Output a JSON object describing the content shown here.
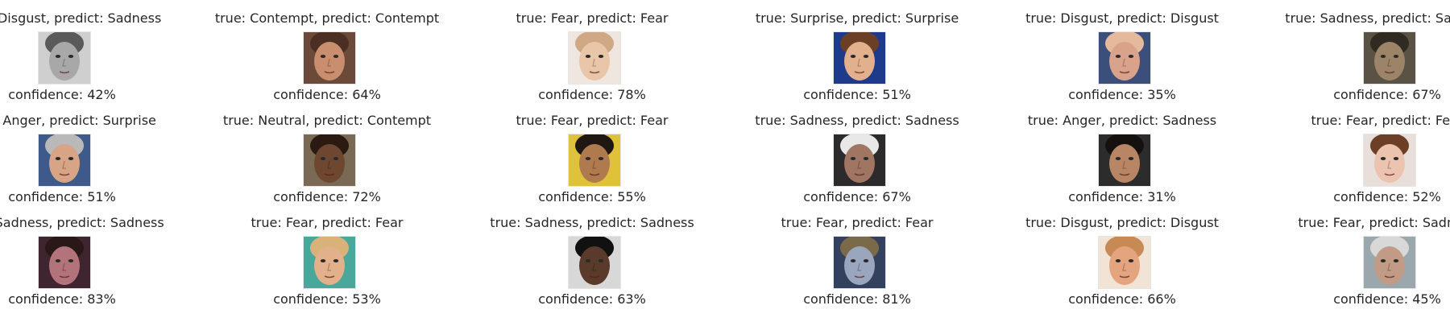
{
  "grid": [
    [
      {
        "title": "true: Disgust, predict: Sadness",
        "confidence": "confidence: 42%",
        "tone": "#a8a8a8",
        "bg": "#cfcfcf",
        "hair": "#5a5a5a"
      },
      {
        "title": "true: Contempt, predict: Contempt",
        "confidence": "confidence: 64%",
        "tone": "#c98e6e",
        "bg": "#6b4a3a",
        "hair": "#4a2f22"
      },
      {
        "title": "true: Fear, predict: Fear",
        "confidence": "confidence: 78%",
        "tone": "#e9c6a8",
        "bg": "#efe7df",
        "hair": "#cfa985"
      },
      {
        "title": "true: Surprise, predict: Surprise",
        "confidence": "confidence: 51%",
        "tone": "#e3b08e",
        "bg": "#1e3a8a",
        "hair": "#6b3f25"
      },
      {
        "title": "true: Disgust, predict: Disgust",
        "confidence": "confidence: 35%",
        "tone": "#d8a38a",
        "bg": "#3c4f7a",
        "hair": "#e4b99c"
      },
      {
        "title": "true: Sadness, predict: Sadness",
        "confidence": "confidence: 67%",
        "tone": "#9b8467",
        "bg": "#5a5244",
        "hair": "#2f2a22"
      }
    ],
    [
      {
        "title": "true: Anger, predict: Surprise",
        "confidence": "confidence: 51%",
        "tone": "#d7a485",
        "bg": "#3d5a8a",
        "hair": "#b9b9b9"
      },
      {
        "title": "true: Neutral, predict: Contempt",
        "confidence": "confidence: 72%",
        "tone": "#6e4731",
        "bg": "#7a6a55",
        "hair": "#2a1a12"
      },
      {
        "title": "true: Fear, predict: Fear",
        "confidence": "confidence: 55%",
        "tone": "#b07a4f",
        "bg": "#e0c23a",
        "hair": "#1f1812"
      },
      {
        "title": "true: Sadness, predict: Sadness",
        "confidence": "confidence: 67%",
        "tone": "#a07562",
        "bg": "#2c2a2a",
        "hair": "#e8e8e8"
      },
      {
        "title": "true: Anger, predict: Sadness",
        "confidence": "confidence: 31%",
        "tone": "#b98665",
        "bg": "#2d2c2c",
        "hair": "#15110e"
      },
      {
        "title": "true: Fear, predict: Fear",
        "confidence": "confidence: 52%",
        "tone": "#ecc3ae",
        "bg": "#e9dfda",
        "hair": "#6d3f27"
      }
    ],
    [
      {
        "title": "true: Sadness, predict: Sadness",
        "confidence": "confidence: 83%",
        "tone": "#b2737a",
        "bg": "#3e2530",
        "hair": "#2a1718"
      },
      {
        "title": "true: Fear, predict: Fear",
        "confidence": "confidence: 53%",
        "tone": "#e2b08a",
        "bg": "#4aa79b",
        "hair": "#d9b27a"
      },
      {
        "title": "true: Sadness, predict: Sadness",
        "confidence": "confidence: 63%",
        "tone": "#5a3a2a",
        "bg": "#d8d8d8",
        "hair": "#111111"
      },
      {
        "title": "true: Fear, predict: Fear",
        "confidence": "confidence: 81%",
        "tone": "#9aa6bd",
        "bg": "#33405e",
        "hair": "#7a6a4a"
      },
      {
        "title": "true: Disgust, predict: Disgust",
        "confidence": "confidence: 66%",
        "tone": "#e4a47e",
        "bg": "#f1e3d6",
        "hair": "#c88a55"
      },
      {
        "title": "true: Fear, predict: Sadness",
        "confidence": "confidence: 45%",
        "tone": "#c29b86",
        "bg": "#9aa7ad",
        "hair": "#d8d8d8"
      }
    ]
  ]
}
